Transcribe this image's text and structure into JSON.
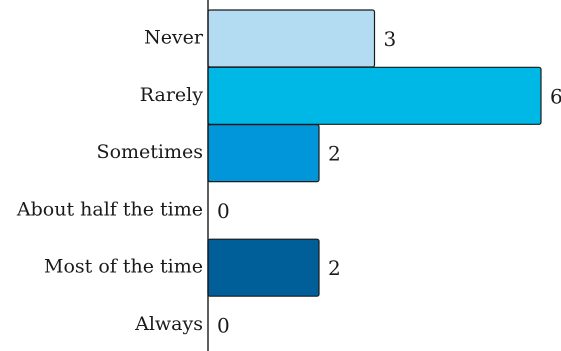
{
  "chart_data": {
    "type": "bar",
    "orientation": "horizontal",
    "categories": [
      "Never",
      "Rarely",
      "Sometimes",
      "About half the time",
      "Most of the time",
      "Always"
    ],
    "values": [
      3,
      6,
      2,
      0,
      2,
      0
    ],
    "colors": [
      "#b3dcf2",
      "#00b8e6",
      "#0096d9",
      "#0079bf",
      "#005f99",
      "#004a7a"
    ],
    "title": "",
    "xlabel": "",
    "ylabel": "",
    "xlim": [
      0,
      6
    ],
    "grid": false,
    "legend": "none",
    "value_labels_shown": true
  }
}
